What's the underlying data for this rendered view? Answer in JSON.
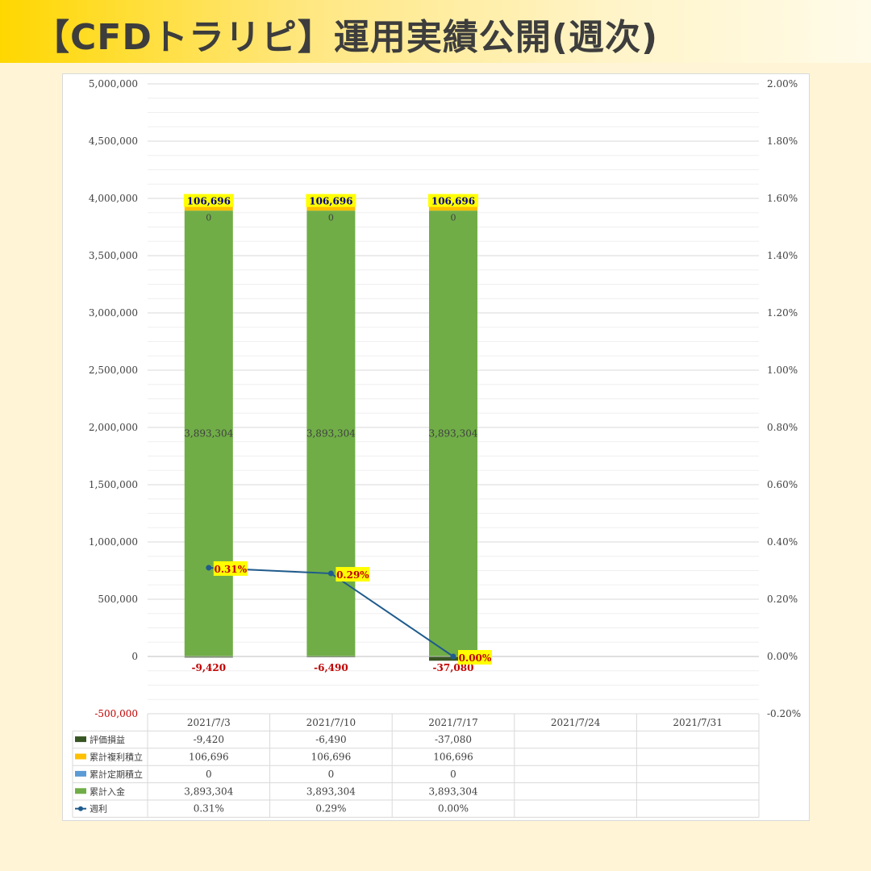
{
  "title": "【CFDトラリピ】運用実績公開(週次)",
  "colors": {
    "eval": "#375623",
    "fukuri": "#ffc000",
    "teiki": "#5b9bd5",
    "nyukin": "#70ad47",
    "line": "#1f5b8c",
    "label_highlight": "#ffff00",
    "neg_text": "#c00000",
    "pos_label_text": "#00008b"
  },
  "chart_data": {
    "type": "bar",
    "stacked": true,
    "categories": [
      "2021/7/3",
      "2021/7/10",
      "2021/7/17",
      "2021/7/24",
      "2021/7/31"
    ],
    "series": [
      {
        "name": "評価損益",
        "values": [
          -9420,
          -6490,
          -37080,
          null,
          null
        ],
        "labels": [
          "-9,420",
          "-6,490",
          "-37,080",
          "",
          ""
        ]
      },
      {
        "name": "累計複利積立",
        "values": [
          106696,
          106696,
          106696,
          null,
          null
        ],
        "labels": [
          "106,696",
          "106,696",
          "106,696",
          "",
          ""
        ]
      },
      {
        "name": "累計定期積立",
        "values": [
          0,
          0,
          0,
          null,
          null
        ],
        "labels": [
          "0",
          "0",
          "0",
          "",
          ""
        ]
      },
      {
        "name": "累計入金",
        "values": [
          3893304,
          3893304,
          3893304,
          null,
          null
        ],
        "labels": [
          "3,893,304",
          "3,893,304",
          "3,893,304",
          "",
          ""
        ]
      },
      {
        "name": "週利",
        "type": "line",
        "axis": "right",
        "values": [
          0.31,
          0.29,
          0.0,
          null,
          null
        ],
        "labels": [
          "0.31%",
          "0.29%",
          "0.00%",
          "",
          ""
        ]
      }
    ],
    "ylim": [
      -500000,
      5000000
    ],
    "y2lim": [
      -0.2,
      2.0
    ],
    "yticks": [
      "5,000,000",
      "4,500,000",
      "4,000,000",
      "3,500,000",
      "3,000,000",
      "2,500,000",
      "2,000,000",
      "1,500,000",
      "1,000,000",
      "500,000",
      "0",
      "-500,000"
    ],
    "y2ticks": [
      "2.00%",
      "1.80%",
      "1.60%",
      "1.40%",
      "1.20%",
      "1.00%",
      "0.80%",
      "0.60%",
      "0.40%",
      "0.20%",
      "0.00%",
      "-0.20%"
    ],
    "grid": true,
    "legend": "data-table"
  }
}
